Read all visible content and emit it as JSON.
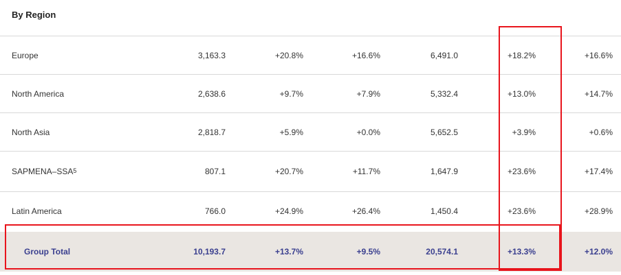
{
  "section_title": "By Region",
  "rows": [
    {
      "region": "Europe",
      "footnote": "",
      "v1": "3,163.3",
      "v2": "+20.8%",
      "v3": "+16.6%",
      "v4": "6,491.0",
      "v5": "+18.2%",
      "v6": "+16.6%"
    },
    {
      "region": "North America",
      "footnote": "",
      "v1": "2,638.6",
      "v2": "+9.7%",
      "v3": "+7.9%",
      "v4": "5,332.4",
      "v5": "+13.0%",
      "v6": "+14.7%"
    },
    {
      "region": "North Asia",
      "footnote": "",
      "v1": "2,818.7",
      "v2": "+5.9%",
      "v3": "+0.0%",
      "v4": "5,652.5",
      "v5": "+3.9%",
      "v6": "+0.6%"
    },
    {
      "region": "SAPMENA–SSA",
      "footnote": "5",
      "v1": "807.1",
      "v2": "+20.7%",
      "v3": "+11.7%",
      "v4": "1,647.9",
      "v5": "+23.6%",
      "v6": "+17.4%"
    },
    {
      "region": "Latin America",
      "footnote": "",
      "v1": "766.0",
      "v2": "+24.9%",
      "v3": "+26.4%",
      "v4": "1,450.4",
      "v5": "+23.6%",
      "v6": "+28.9%"
    }
  ],
  "total": {
    "region": "Group Total",
    "v1": "10,193.7",
    "v2": "+13.7%",
    "v3": "+9.5%",
    "v4": "20,574.1",
    "v5": "+13.3%",
    "v6": "+12.0%"
  },
  "colors": {
    "highlight": "#e8141c",
    "total_text": "#3a3f8f",
    "total_bg": "#eae6e2"
  }
}
